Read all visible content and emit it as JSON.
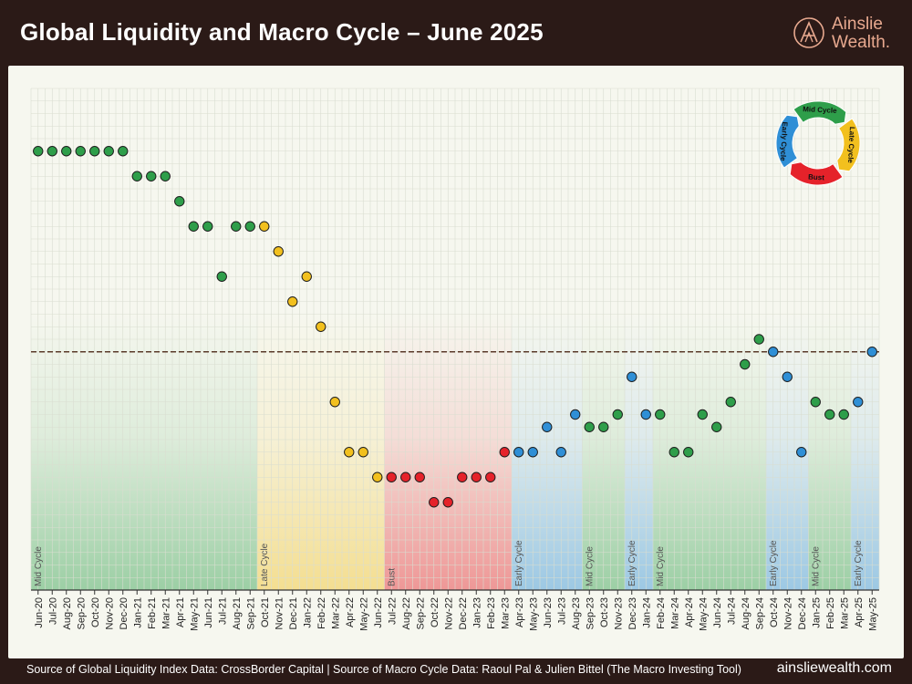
{
  "title": "Global Liquidity and Macro Cycle – June 2025",
  "brand": {
    "line1": "Ainslie",
    "line2": "Wealth."
  },
  "footer": {
    "source": "Source of Global Liquidity Index Data: CrossBorder Capital | Source of Macro Cycle Data: Raoul Pal & Julien Bittel (The Macro Investing Tool)",
    "url": "ainsliewealth.com"
  },
  "cycle_wheel": {
    "segments": [
      {
        "label": "Mid Cycle",
        "color": "#2e9e4a"
      },
      {
        "label": "Late Cycle",
        "color": "#f2c01e"
      },
      {
        "label": "Bust",
        "color": "#e5222a"
      },
      {
        "label": "Early Cycle",
        "color": "#2f8fd6"
      }
    ]
  },
  "colors": {
    "Mid Cycle": "#2e9e4a",
    "Late Cycle": "#f2c01e",
    "Bust": "#e5222a",
    "Early Cycle": "#2f8fd6",
    "grid": "#d9ddd0",
    "dashed_line": "#5a3a2a"
  },
  "chart_data": {
    "type": "scatter",
    "title": "",
    "xlabel": "",
    "ylabel": "",
    "y_axis_labels_shown": false,
    "ylim": [
      0,
      20
    ],
    "reference_line": {
      "y": 9.5,
      "style": "dashed"
    },
    "grid": true,
    "x": [
      "Jun-20",
      "Jul-20",
      "Aug-20",
      "Sep-20",
      "Oct-20",
      "Nov-20",
      "Dec-20",
      "Jan-21",
      "Feb-21",
      "Mar-21",
      "Apr-21",
      "May-21",
      "Jun-21",
      "Jul-21",
      "Aug-21",
      "Sep-21",
      "Oct-21",
      "Nov-21",
      "Dec-21",
      "Jan-22",
      "Feb-22",
      "Mar-22",
      "Apr-22",
      "May-22",
      "Jun-22",
      "Jul-22",
      "Aug-22",
      "Sep-22",
      "Oct-22",
      "Nov-22",
      "Dec-22",
      "Jan-23",
      "Feb-23",
      "Mar-23",
      "Apr-23",
      "May-23",
      "Jun-23",
      "Jul-23",
      "Aug-23",
      "Sep-23",
      "Oct-23",
      "Nov-23",
      "Dec-23",
      "Jan-24",
      "Feb-24",
      "Mar-24",
      "Apr-24",
      "May-24",
      "Jun-24",
      "Jul-24",
      "Aug-24",
      "Sep-24",
      "Oct-24",
      "Nov-24",
      "Dec-24",
      "Jan-25",
      "Feb-25",
      "Mar-25",
      "Apr-25",
      "May-25"
    ],
    "values": [
      17.5,
      17.5,
      17.5,
      17.5,
      17.5,
      17.5,
      17.5,
      16.5,
      16.5,
      16.5,
      15.5,
      14.5,
      14.5,
      12.5,
      14.5,
      14.5,
      14.5,
      13.5,
      11.5,
      12.5,
      10.5,
      7.5,
      5.5,
      5.5,
      4.5,
      4.5,
      4.5,
      4.5,
      3.5,
      3.5,
      4.5,
      4.5,
      4.5,
      5.5,
      5.5,
      5.5,
      6.5,
      5.5,
      7.0,
      6.5,
      6.5,
      7.0,
      8.5,
      7.0,
      7.0,
      5.5,
      5.5,
      7.0,
      6.5,
      7.5,
      9.0,
      10.0,
      9.5,
      8.5,
      5.5,
      7.5,
      7.0,
      7.0,
      7.5,
      9.5
    ],
    "series": [
      {
        "name": "Mid Cycle",
        "color": "#2e9e4a"
      },
      {
        "name": "Late Cycle",
        "color": "#f2c01e"
      },
      {
        "name": "Bust",
        "color": "#e5222a"
      },
      {
        "name": "Early Cycle",
        "color": "#2f8fd6"
      }
    ],
    "phase_of_point": [
      "Mid Cycle",
      "Mid Cycle",
      "Mid Cycle",
      "Mid Cycle",
      "Mid Cycle",
      "Mid Cycle",
      "Mid Cycle",
      "Mid Cycle",
      "Mid Cycle",
      "Mid Cycle",
      "Mid Cycle",
      "Mid Cycle",
      "Mid Cycle",
      "Mid Cycle",
      "Mid Cycle",
      "Mid Cycle",
      "Late Cycle",
      "Late Cycle",
      "Late Cycle",
      "Late Cycle",
      "Late Cycle",
      "Late Cycle",
      "Late Cycle",
      "Late Cycle",
      "Late Cycle",
      "Bust",
      "Bust",
      "Bust",
      "Bust",
      "Bust",
      "Bust",
      "Bust",
      "Bust",
      "Bust",
      "Early Cycle",
      "Early Cycle",
      "Early Cycle",
      "Early Cycle",
      "Early Cycle",
      "Mid Cycle",
      "Mid Cycle",
      "Mid Cycle",
      "Early Cycle",
      "Early Cycle",
      "Mid Cycle",
      "Mid Cycle",
      "Mid Cycle",
      "Mid Cycle",
      "Mid Cycle",
      "Mid Cycle",
      "Mid Cycle",
      "Mid Cycle",
      "Early Cycle",
      "Early Cycle",
      "Early Cycle",
      "Mid Cycle",
      "Mid Cycle",
      "Mid Cycle",
      "Early Cycle",
      "Early Cycle"
    ],
    "phase_bands": [
      {
        "label": "Mid Cycle",
        "from": "Jun-20",
        "to": "Sep-21"
      },
      {
        "label": "Late Cycle",
        "from": "Oct-21",
        "to": "Jun-22"
      },
      {
        "label": "Bust",
        "from": "Jul-22",
        "to": "Mar-23"
      },
      {
        "label": "Early Cycle",
        "from": "Apr-23",
        "to": "Aug-23"
      },
      {
        "label": "Mid Cycle",
        "from": "Sep-23",
        "to": "Nov-23"
      },
      {
        "label": "Early Cycle",
        "from": "Dec-23",
        "to": "Jan-24"
      },
      {
        "label": "Mid Cycle",
        "from": "Feb-24",
        "to": "Sep-24"
      },
      {
        "label": "Early Cycle",
        "from": "Oct-24",
        "to": "Dec-24"
      },
      {
        "label": "Mid Cycle",
        "from": "Jan-25",
        "to": "Mar-25"
      },
      {
        "label": "Early Cycle",
        "from": "Apr-25",
        "to": "May-25"
      }
    ]
  }
}
